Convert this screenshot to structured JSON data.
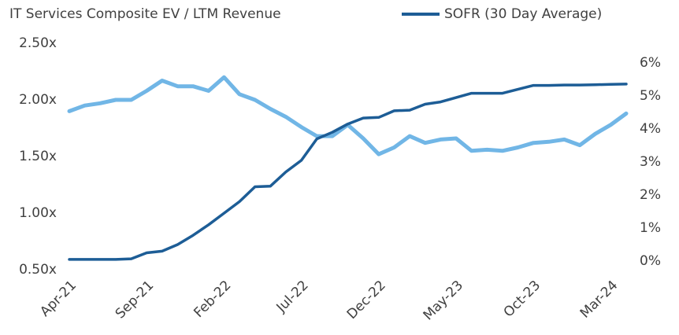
{
  "chart_data": {
    "type": "line",
    "categories": [
      "Apr-21",
      null,
      null,
      null,
      null,
      "Sep-21",
      null,
      null,
      null,
      null,
      "Feb-22",
      null,
      null,
      null,
      null,
      "Jul-22",
      null,
      null,
      null,
      null,
      "Dec-22",
      null,
      null,
      null,
      null,
      "May-23",
      null,
      null,
      null,
      null,
      "Oct-23",
      null,
      null,
      null,
      null,
      "Mar-24",
      null
    ],
    "series": [
      {
        "name": "IT Services Composite EV / LTM Revenue",
        "color": "#71b6e6",
        "axis": "y",
        "values": [
          1.9,
          1.95,
          1.97,
          2.0,
          2.0,
          2.08,
          2.17,
          2.12,
          2.12,
          2.08,
          2.2,
          2.05,
          2.0,
          1.92,
          1.85,
          1.76,
          1.68,
          1.68,
          1.78,
          1.66,
          1.52,
          1.58,
          1.68,
          1.62,
          1.65,
          1.66,
          1.55,
          1.56,
          1.55,
          1.58,
          1.62,
          1.63,
          1.65,
          1.6,
          1.7,
          1.78,
          1.88
        ]
      },
      {
        "name": "SOFR (30 Day Average)",
        "color": "#1d5d96",
        "axis": "y2",
        "values": [
          0.05,
          0.05,
          0.05,
          0.05,
          0.07,
          0.25,
          0.3,
          0.5,
          0.78,
          1.1,
          1.45,
          1.8,
          2.25,
          2.27,
          2.7,
          3.05,
          3.7,
          3.9,
          4.15,
          4.33,
          4.35,
          4.55,
          4.57,
          4.75,
          4.82,
          4.95,
          5.08,
          5.08,
          5.08,
          5.2,
          5.32,
          5.32,
          5.33,
          5.33,
          5.34,
          5.35,
          5.36
        ]
      }
    ],
    "ylim": [
      0.5,
      2.5
    ],
    "yticks": [
      {
        "value": 0.5,
        "label": "0.50x"
      },
      {
        "value": 1.0,
        "label": "1.00x"
      },
      {
        "value": 1.5,
        "label": "1.50x"
      },
      {
        "value": 2.0,
        "label": "2.00x"
      },
      {
        "value": 2.5,
        "label": "2.50x"
      }
    ],
    "y2lim": [
      0,
      6
    ],
    "y2ticks": [
      {
        "value": 0,
        "label": "0%"
      },
      {
        "value": 1,
        "label": "1%"
      },
      {
        "value": 2,
        "label": "2%"
      },
      {
        "value": 3,
        "label": "3%"
      },
      {
        "value": 4,
        "label": "4%"
      },
      {
        "value": 5,
        "label": "5%"
      },
      {
        "value": 6,
        "label": "6%"
      }
    ],
    "grid": false,
    "legend": "top"
  }
}
